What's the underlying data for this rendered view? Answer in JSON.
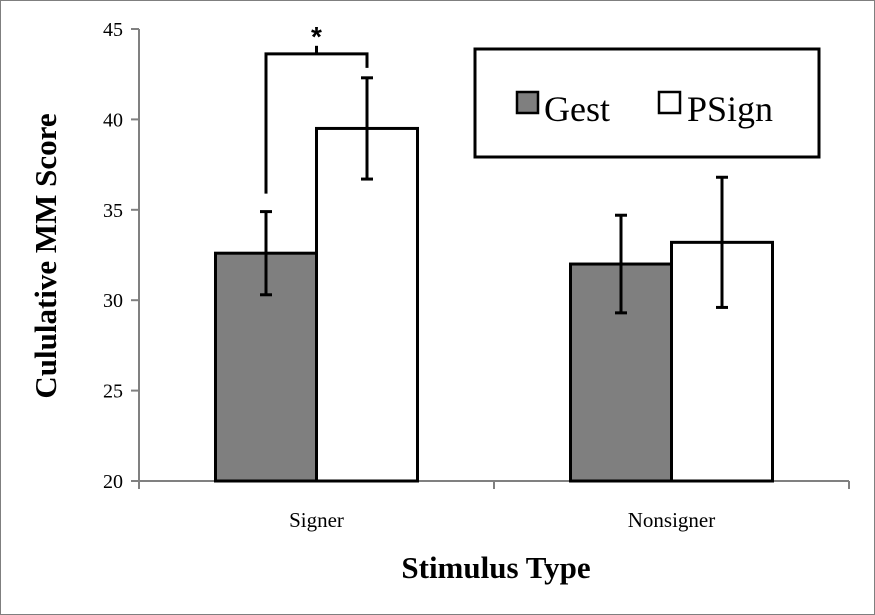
{
  "chart_data": {
    "type": "bar",
    "title": "",
    "xlabel": "Stimulus Type",
    "ylabel": "Cululative MM Score",
    "categories": [
      "Signer",
      "Nonsigner"
    ],
    "ylim": [
      20,
      45
    ],
    "yticks": [
      20,
      25,
      30,
      35,
      40,
      45
    ],
    "grid": false,
    "legend_position": "top-right",
    "series": [
      {
        "name": "Gest",
        "values": [
          32.6,
          32.0
        ],
        "errors": [
          2.3,
          2.7
        ],
        "color": "#7f7f7f"
      },
      {
        "name": "PSign",
        "values": [
          39.5,
          33.2
        ],
        "errors": [
          2.8,
          3.6
        ],
        "color": "#ffffff"
      }
    ],
    "annotations": [
      {
        "text": "*",
        "category": "Signer",
        "meaning": "significance bracket between Gest and PSign"
      }
    ]
  }
}
